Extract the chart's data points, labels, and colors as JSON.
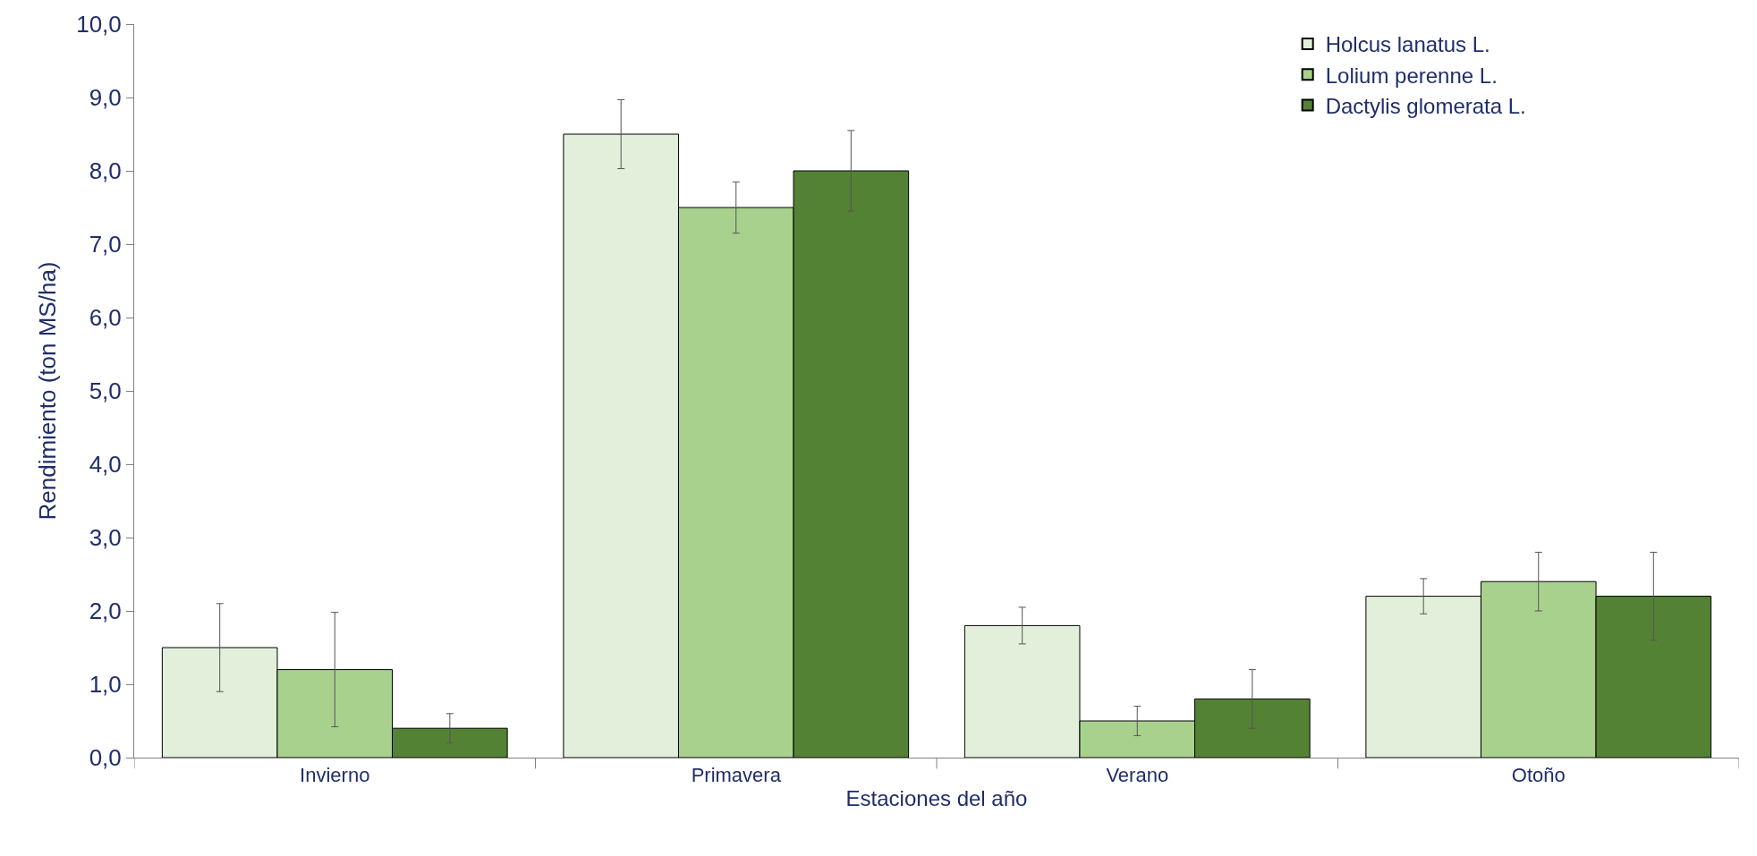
{
  "chart_data": {
    "type": "bar",
    "xlabel": "Estaciones del año",
    "ylabel": "Rendimiento (ton MS/ha)",
    "categories": [
      "Invierno",
      "Primavera",
      "Verano",
      "Otoño"
    ],
    "series": [
      {
        "name": "Holcus lanatus L.",
        "color": "#e2efda",
        "values": [
          1.5,
          8.5,
          1.8,
          2.2
        ],
        "errors": [
          0.6,
          0.47,
          0.25,
          0.24
        ]
      },
      {
        "name": "Lolium perenne L.",
        "color": "#a9d18e",
        "values": [
          1.2,
          7.5,
          0.5,
          2.4
        ],
        "errors": [
          0.78,
          0.35,
          0.2,
          0.4
        ]
      },
      {
        "name": "Dactylis glomerata L.",
        "color": "#548235",
        "values": [
          0.4,
          8.0,
          0.8,
          2.2
        ],
        "errors": [
          0.2,
          0.55,
          0.4,
          0.6
        ]
      }
    ],
    "ylim": [
      0,
      10
    ],
    "yticks": [
      {
        "value": 0,
        "label": "0,0"
      },
      {
        "value": 1,
        "label": "1,0"
      },
      {
        "value": 2,
        "label": "2,0"
      },
      {
        "value": 3,
        "label": "3,0"
      },
      {
        "value": 4,
        "label": "4,0"
      },
      {
        "value": 5,
        "label": "5,0"
      },
      {
        "value": 6,
        "label": "6,0"
      },
      {
        "value": 7,
        "label": "7,0"
      },
      {
        "value": 8,
        "label": "8,0"
      },
      {
        "value": 9,
        "label": "9,0"
      },
      {
        "value": 10,
        "label": "10,0"
      }
    ],
    "legend": "top right"
  }
}
